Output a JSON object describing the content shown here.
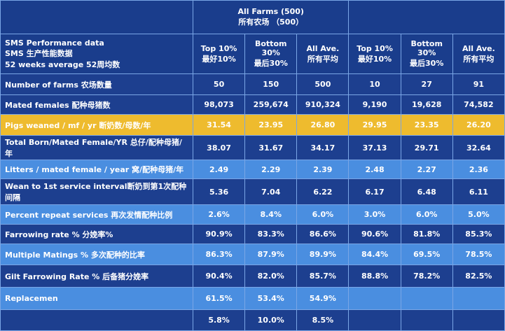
{
  "table": {
    "group_header": "All Farms (500)\n所有农场 （500）",
    "header_label": "SMS Performance data\nSMS 生产性能数据\n52 weeks average 52周均数",
    "columns": [
      "Top 10%\n最好10%",
      "Bottom\n30%\n最后30%",
      "All Ave.\n所有平均",
      "Top 10%\n最好10%",
      "Bottom\n30%\n最后30%",
      "All Ave.\n所有平均"
    ],
    "rows": [
      {
        "label": "Number of farms 农场数量",
        "values": [
          "50",
          "150",
          "500",
          "10",
          "27",
          "91"
        ],
        "color": "#1d3f8f"
      },
      {
        "label": "Mated females 配种母猪数",
        "values": [
          "98,073",
          "259,674",
          "910,324",
          "9,190",
          "19,628",
          "74,582"
        ],
        "color": "#1d3f8f"
      },
      {
        "label": "Pigs weaned / mf / yr 断奶数/母数/年",
        "values": [
          "31.54",
          "23.95",
          "26.80",
          "29.95",
          "23.35",
          "26.20"
        ],
        "color": "#eebb2e"
      },
      {
        "label": "Total Born/Mated Female/YR 总仔/配种母猪/年",
        "values": [
          "38.07",
          "31.67",
          "34.17",
          "37.13",
          "29.71",
          "32.64"
        ],
        "color": "#1d3f8f"
      },
      {
        "label": "Litters / mated female / year 窝/配种母猪/年",
        "values": [
          "2.49",
          "2.29",
          "2.39",
          "2.48",
          "2.27",
          "2.36"
        ],
        "color": "#4a8ee0"
      },
      {
        "label": "Wean to 1st service interval断奶到第1次配种间隔",
        "values": [
          "5.36",
          "7.04",
          "6.22",
          "6.17",
          "6.48",
          "6.11"
        ],
        "color": "#1d3f8f"
      },
      {
        "label": "Percent repeat services 再次发情配种比例",
        "values": [
          "2.6%",
          "8.4%",
          "6.0%",
          "3.0%",
          "6.0%",
          "5.0%"
        ],
        "color": "#4a8ee0"
      },
      {
        "label": "Farrowing rate % 分娩率%",
        "values": [
          "90.9%",
          "83.3%",
          "86.6%",
          "90.6%",
          "81.8%",
          "85.3%"
        ],
        "color": "#1d3f8f"
      },
      {
        "label": "Multiple Matings % 多次配种的比率",
        "values": [
          "86.3%",
          "87.9%",
          "89.9%",
          "84.4%",
          "69.5%",
          "78.5%"
        ],
        "color": "#4a8ee0"
      },
      {
        "label": "Gilt Farrowing Rate % 后备猪分娩率",
        "values": [
          "90.4%",
          "82.0%",
          "85.7%",
          "88.8%",
          "78.2%",
          "82.5%"
        ],
        "color": "#1d3f8f"
      },
      {
        "label": "Replacemen",
        "values": [
          "61.5%",
          "53.4%",
          "54.9%"
        ],
        "color": "#4a8ee0"
      },
      {
        "values": [
          "5.8%",
          "10.0%",
          "8.5%"
        ],
        "color": "#1d3f8f"
      }
    ]
  }
}
